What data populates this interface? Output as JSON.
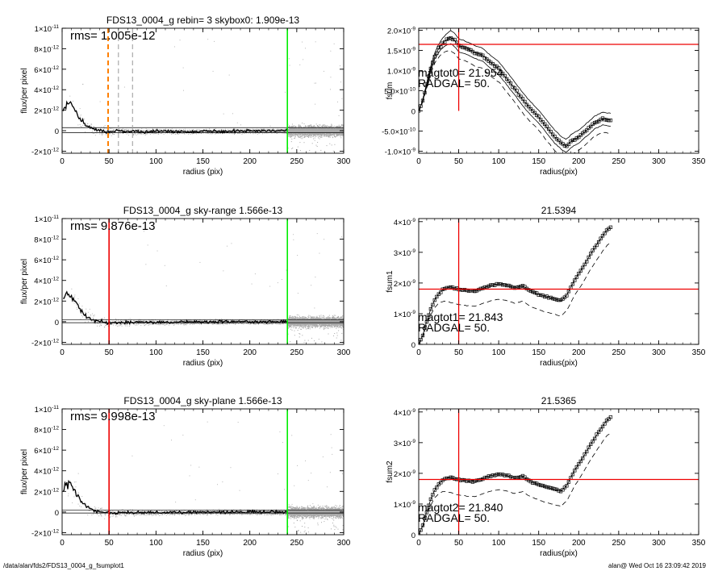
{
  "footer": {
    "path": "/data/alan/fds2/FDS13_0004_g_fsumplot1",
    "stamp": "alan@  Wed Oct 16 23:09:42 2019"
  },
  "chart_data": [
    {
      "id": "p1",
      "type": "scatter",
      "title": "FDS13_0004_g rebin= 3    skybox0:  1.909e-13",
      "xlabel": "radius (pix)",
      "ylabel": "flux/per pixel",
      "xlim": [
        0,
        300
      ],
      "ylim": [
        -2.2e-12,
        1e-11
      ],
      "xticks": [
        "0",
        "50",
        "100",
        "150",
        "200",
        "250",
        "300"
      ],
      "yticks": [
        {
          "v": -2e-12,
          "m": "-2",
          "e": "-12"
        },
        {
          "v": 0,
          "m": "0",
          "e": ""
        },
        {
          "v": 2e-12,
          "m": "2",
          "e": "-12"
        },
        {
          "v": 4e-12,
          "m": "4",
          "e": "-12"
        },
        {
          "v": 6e-12,
          "m": "6",
          "e": "-12"
        },
        {
          "v": 8e-12,
          "m": "8",
          "e": "-12"
        },
        {
          "v": 1e-11,
          "m": "1",
          "e": "-11",
          "x10": true
        }
      ],
      "annotations": [
        {
          "text": "rms= 1.005e-12"
        }
      ],
      "vlines": [
        {
          "x": 49,
          "color": "#ff8000",
          "dash": "6,4",
          "width": 2
        },
        {
          "x": 60,
          "color": "#999999",
          "dash": "6,4",
          "width": 1
        },
        {
          "x": 75,
          "color": "#999999",
          "dash": "6,4",
          "width": 1
        },
        {
          "x": 240,
          "color": "#00ee00",
          "dash": "",
          "width": 1.6
        }
      ],
      "hlines": [
        {
          "y": 3e-13
        },
        {
          "y": -2e-13
        }
      ],
      "profile": [
        [
          1,
          2.2e-12
        ],
        [
          5,
          2.8e-12
        ],
        [
          10,
          2.5e-12
        ],
        [
          15,
          1.9e-12
        ],
        [
          20,
          1.1e-12
        ],
        [
          25,
          6e-13
        ],
        [
          30,
          3e-13
        ],
        [
          35,
          1e-13
        ],
        [
          40,
          0
        ],
        [
          45,
          -5e-14
        ],
        [
          50,
          -1e-13
        ],
        [
          60,
          -5e-14
        ],
        [
          80,
          -1e-13
        ],
        [
          100,
          -5e-14
        ],
        [
          130,
          -8e-14
        ],
        [
          160,
          -5e-14
        ],
        [
          200,
          -3e-14
        ],
        [
          240,
          0
        ]
      ],
      "noise": {
        "seed": 11,
        "xmax": 300,
        "dense_from": 240
      }
    },
    {
      "id": "p2",
      "type": "line",
      "title": "",
      "xlabel": "radius(pix)",
      "ylabel": "fsum",
      "xlim": [
        0,
        350
      ],
      "ylim": [
        -1.05e-09,
        2.05e-09
      ],
      "xticks": [
        "0",
        "50",
        "100",
        "150",
        "200",
        "250",
        "300",
        "350"
      ],
      "yticks": [
        {
          "v": -1e-09,
          "m": "-1.0",
          "e": "-9"
        },
        {
          "v": -5e-10,
          "m": "-5.0",
          "e": "-10"
        },
        {
          "v": 0,
          "m": "0",
          "e": ""
        },
        {
          "v": 5e-10,
          "m": "5.0",
          "e": "-10"
        },
        {
          "v": 1e-09,
          "m": "1.0",
          "e": "-9"
        },
        {
          "v": 1.5e-09,
          "m": "1.5",
          "e": "-9"
        },
        {
          "v": 2e-09,
          "m": "2.0",
          "e": "-9"
        }
      ],
      "annotations": [
        {
          "text": "magtot0=  21.954"
        },
        {
          "text": "RADGAL=     50."
        }
      ],
      "crosshair": {
        "x": 50,
        "y": 1.65e-09,
        "y_from": 0,
        "y_to": 2.05e-09
      },
      "series": [
        {
          "name": "",
          "style": "markers",
          "shift": 0,
          "points": [
            [
              0,
              0
            ],
            [
              5,
              2.5e-10
            ],
            [
              10,
              6.5e-10
            ],
            [
              15,
              1.05e-09
            ],
            [
              20,
              1.35e-09
            ],
            [
              25,
              1.55e-09
            ],
            [
              30,
              1.68e-09
            ],
            [
              35,
              1.77e-09
            ],
            [
              40,
              1.82e-09
            ],
            [
              45,
              1.75e-09
            ],
            [
              50,
              1.62e-09
            ],
            [
              60,
              1.55e-09
            ],
            [
              70,
              1.45e-09
            ],
            [
              80,
              1.38e-09
            ],
            [
              90,
              1.2e-09
            ],
            [
              100,
              1.05e-09
            ],
            [
              110,
              8e-10
            ],
            [
              120,
              5.5e-10
            ],
            [
              130,
              2.8e-10
            ],
            [
              140,
              5e-11
            ],
            [
              150,
              -1.5e-10
            ],
            [
              160,
              -4e-10
            ],
            [
              170,
              -6.5e-10
            ],
            [
              180,
              -8.3e-10
            ],
            [
              185,
              -8.8e-10
            ],
            [
              190,
              -7.6e-10
            ],
            [
              200,
              -6.5e-10
            ],
            [
              210,
              -4.8e-10
            ],
            [
              220,
              -3e-10
            ],
            [
              230,
              -2e-10
            ],
            [
              240,
              -2.3e-10
            ]
          ]
        },
        {
          "name": "",
          "style": "solid",
          "shift": 1.7e-10,
          "points": []
        },
        {
          "name": "",
          "style": "solid",
          "shift": -1.5e-10,
          "points": []
        },
        {
          "name": "",
          "style": "dashed",
          "shift": -3.3e-10,
          "points": []
        }
      ]
    },
    {
      "id": "p3",
      "type": "scatter",
      "title": "FDS13_0004_g sky-range  1.566e-13",
      "xlabel": "radius (pix)",
      "ylabel": "flux/per pixel",
      "xlim": [
        0,
        300
      ],
      "ylim": [
        -2.2e-12,
        1e-11
      ],
      "xticks": [
        "0",
        "50",
        "100",
        "150",
        "200",
        "250",
        "300"
      ],
      "yticks": [
        {
          "v": -2e-12,
          "m": "-2",
          "e": "-12"
        },
        {
          "v": 0,
          "m": "0",
          "e": ""
        },
        {
          "v": 2e-12,
          "m": "2",
          "e": "-12"
        },
        {
          "v": 4e-12,
          "m": "4",
          "e": "-12"
        },
        {
          "v": 6e-12,
          "m": "6",
          "e": "-12"
        },
        {
          "v": 8e-12,
          "m": "8",
          "e": "-12"
        },
        {
          "v": 1e-11,
          "m": "1",
          "e": "-11",
          "x10": true
        }
      ],
      "annotations": [
        {
          "text": "rms= 9.876e-13"
        }
      ],
      "vlines": [
        {
          "x": 50,
          "color": "#ee0000",
          "dash": "",
          "width": 1.6
        },
        {
          "x": 240,
          "color": "#00ee00",
          "dash": "",
          "width": 1.6
        }
      ],
      "hlines": [
        {
          "y": 2e-13
        },
        {
          "y": -1e-13
        }
      ],
      "profile": [
        [
          1,
          2.2e-12
        ],
        [
          5,
          2.8e-12
        ],
        [
          10,
          2.5e-12
        ],
        [
          15,
          1.9e-12
        ],
        [
          20,
          1.1e-12
        ],
        [
          25,
          6e-13
        ],
        [
          30,
          3e-13
        ],
        [
          35,
          1e-13
        ],
        [
          40,
          0
        ],
        [
          50,
          -1e-13
        ],
        [
          80,
          -5e-14
        ],
        [
          120,
          -5e-14
        ],
        [
          160,
          0
        ],
        [
          200,
          0
        ],
        [
          240,
          0
        ]
      ],
      "noise": {
        "seed": 23,
        "xmax": 300,
        "dense_from": 240
      }
    },
    {
      "id": "p4",
      "type": "line",
      "title": "21.5394",
      "xlabel": "radius(pix)",
      "ylabel": "fsum1",
      "xlim": [
        0,
        350
      ],
      "ylim": [
        0,
        4.1e-09
      ],
      "xticks": [
        "0",
        "50",
        "100",
        "150",
        "200",
        "250",
        "300",
        "350"
      ],
      "yticks": [
        {
          "v": 0,
          "m": "0",
          "e": ""
        },
        {
          "v": 1e-09,
          "m": "1",
          "e": "-9",
          "x10": true
        },
        {
          "v": 2e-09,
          "m": "2",
          "e": "-9",
          "x10": true
        },
        {
          "v": 3e-09,
          "m": "3",
          "e": "-9",
          "x10": true
        },
        {
          "v": 4e-09,
          "m": "4",
          "e": "-9",
          "x10": true
        }
      ],
      "annotations": [
        {
          "text": "magtot1=  21.843"
        },
        {
          "text": "RADGAL=     50."
        }
      ],
      "crosshair": {
        "x": 50,
        "y": 1.8e-09,
        "y_from": 0,
        "y_to": 4.1e-09
      },
      "series": [
        {
          "name": "",
          "style": "markers",
          "shift": 0,
          "points": [
            [
              0,
              0
            ],
            [
              5,
              3e-10
            ],
            [
              10,
              7.5e-10
            ],
            [
              15,
              1.15e-09
            ],
            [
              20,
              1.45e-09
            ],
            [
              25,
              1.65e-09
            ],
            [
              30,
              1.78e-09
            ],
            [
              35,
              1.84e-09
            ],
            [
              40,
              1.87e-09
            ],
            [
              45,
              1.82e-09
            ],
            [
              50,
              1.8e-09
            ],
            [
              60,
              1.76e-09
            ],
            [
              70,
              1.74e-09
            ],
            [
              80,
              1.83e-09
            ],
            [
              90,
              1.92e-09
            ],
            [
              100,
              1.97e-09
            ],
            [
              110,
              1.93e-09
            ],
            [
              120,
              1.84e-09
            ],
            [
              130,
              1.9e-09
            ],
            [
              140,
              1.74e-09
            ],
            [
              150,
              1.63e-09
            ],
            [
              160,
              1.55e-09
            ],
            [
              170,
              1.48e-09
            ],
            [
              178,
              1.42e-09
            ],
            [
              185,
              1.6e-09
            ],
            [
              195,
              2.1e-09
            ],
            [
              205,
              2.5e-09
            ],
            [
              215,
              2.95e-09
            ],
            [
              225,
              3.35e-09
            ],
            [
              235,
              3.72e-09
            ],
            [
              240,
              3.82e-09
            ]
          ]
        },
        {
          "name": "",
          "style": "dashed",
          "shift": -5e-10,
          "points": []
        }
      ]
    },
    {
      "id": "p5",
      "type": "scatter",
      "title": "FDS13_0004_g sky-plane  1.566e-13",
      "xlabel": "radius (pix)",
      "ylabel": "flux/per pixel",
      "xlim": [
        0,
        300
      ],
      "ylim": [
        -2.2e-12,
        1e-11
      ],
      "xticks": [
        "0",
        "50",
        "100",
        "150",
        "200",
        "250",
        "300"
      ],
      "yticks": [
        {
          "v": -2e-12,
          "m": "-2",
          "e": "-12"
        },
        {
          "v": 0,
          "m": "0",
          "e": ""
        },
        {
          "v": 2e-12,
          "m": "2",
          "e": "-12"
        },
        {
          "v": 4e-12,
          "m": "4",
          "e": "-12"
        },
        {
          "v": 6e-12,
          "m": "6",
          "e": "-12"
        },
        {
          "v": 8e-12,
          "m": "8",
          "e": "-12"
        },
        {
          "v": 1e-11,
          "m": "1",
          "e": "-11",
          "x10": true
        }
      ],
      "annotations": [
        {
          "text": "rms= 9.998e-13"
        }
      ],
      "vlines": [
        {
          "x": 50,
          "color": "#ee0000",
          "dash": "",
          "width": 1.6
        },
        {
          "x": 240,
          "color": "#00ee00",
          "dash": "",
          "width": 1.6
        }
      ],
      "hlines": [
        {
          "y": 2e-13
        },
        {
          "y": -1e-13
        }
      ],
      "profile": [
        [
          1,
          2.2e-12
        ],
        [
          5,
          2.8e-12
        ],
        [
          10,
          2.5e-12
        ],
        [
          15,
          1.9e-12
        ],
        [
          20,
          1.1e-12
        ],
        [
          25,
          6e-13
        ],
        [
          30,
          3e-13
        ],
        [
          35,
          1e-13
        ],
        [
          40,
          0
        ],
        [
          50,
          -1e-13
        ],
        [
          80,
          -5e-14
        ],
        [
          120,
          -5e-14
        ],
        [
          160,
          0
        ],
        [
          200,
          0
        ],
        [
          240,
          0
        ]
      ],
      "noise": {
        "seed": 37,
        "xmax": 300,
        "dense_from": 240
      }
    },
    {
      "id": "p6",
      "type": "line",
      "title": "21.5365",
      "xlabel": "radius(pix)",
      "ylabel": "fsum2",
      "xlim": [
        0,
        350
      ],
      "ylim": [
        0,
        4.1e-09
      ],
      "xticks": [
        "0",
        "50",
        "100",
        "150",
        "200",
        "250",
        "300",
        "350"
      ],
      "yticks": [
        {
          "v": 0,
          "m": "0",
          "e": ""
        },
        {
          "v": 1e-09,
          "m": "1",
          "e": "-9",
          "x10": true
        },
        {
          "v": 2e-09,
          "m": "2",
          "e": "-9",
          "x10": true
        },
        {
          "v": 3e-09,
          "m": "3",
          "e": "-9",
          "x10": true
        },
        {
          "v": 4e-09,
          "m": "4",
          "e": "-9",
          "x10": true
        }
      ],
      "annotations": [
        {
          "text": "magtot2=  21.840"
        },
        {
          "text": "RADGAL=     50."
        }
      ],
      "crosshair": {
        "x": 50,
        "y": 1.8e-09,
        "y_from": 0,
        "y_to": 4.1e-09
      },
      "series": [
        {
          "name": "",
          "style": "markers",
          "shift": 0,
          "points": [
            [
              0,
              0
            ],
            [
              5,
              3e-10
            ],
            [
              10,
              7.5e-10
            ],
            [
              15,
              1.15e-09
            ],
            [
              20,
              1.45e-09
            ],
            [
              25,
              1.65e-09
            ],
            [
              30,
              1.78e-09
            ],
            [
              35,
              1.84e-09
            ],
            [
              40,
              1.87e-09
            ],
            [
              45,
              1.82e-09
            ],
            [
              50,
              1.8e-09
            ],
            [
              60,
              1.76e-09
            ],
            [
              70,
              1.74e-09
            ],
            [
              80,
              1.83e-09
            ],
            [
              90,
              1.92e-09
            ],
            [
              100,
              1.97e-09
            ],
            [
              110,
              1.93e-09
            ],
            [
              120,
              1.84e-09
            ],
            [
              130,
              1.9e-09
            ],
            [
              140,
              1.74e-09
            ],
            [
              150,
              1.63e-09
            ],
            [
              160,
              1.55e-09
            ],
            [
              170,
              1.48e-09
            ],
            [
              178,
              1.42e-09
            ],
            [
              185,
              1.6e-09
            ],
            [
              195,
              2.1e-09
            ],
            [
              205,
              2.5e-09
            ],
            [
              215,
              2.95e-09
            ],
            [
              225,
              3.35e-09
            ],
            [
              235,
              3.72e-09
            ],
            [
              240,
              3.82e-09
            ]
          ]
        },
        {
          "name": "",
          "style": "dashed",
          "shift": -5e-10,
          "points": []
        }
      ]
    }
  ]
}
